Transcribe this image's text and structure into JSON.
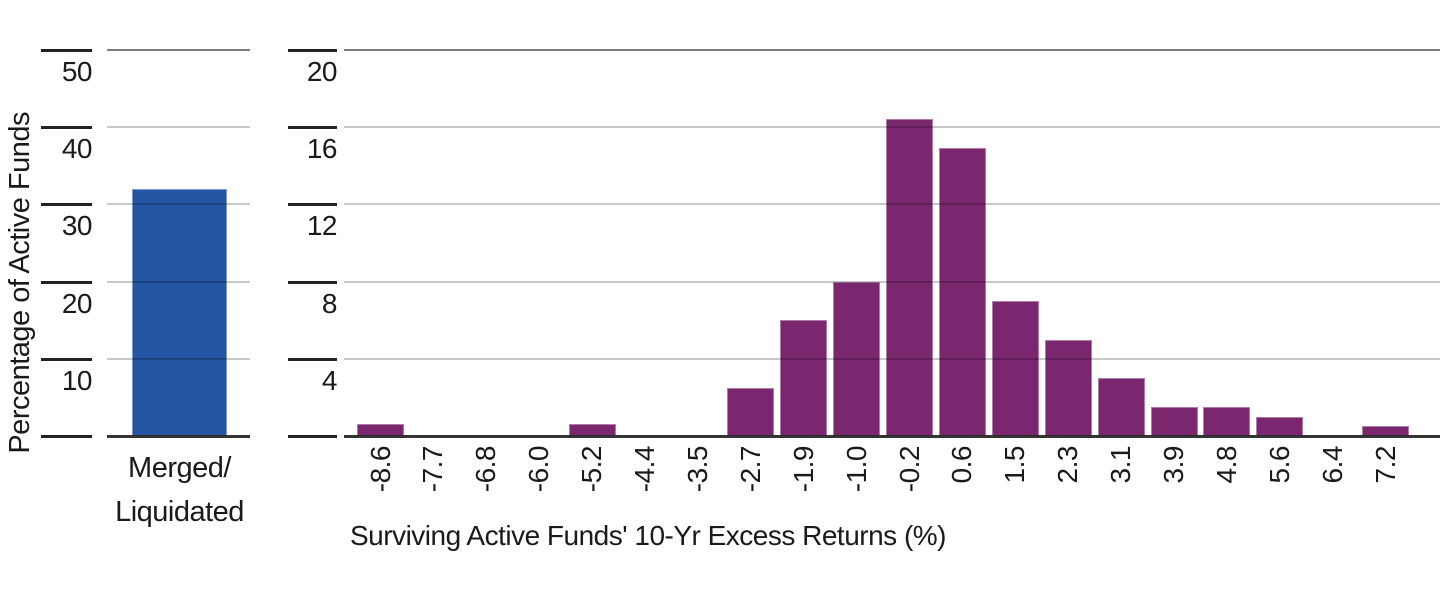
{
  "chart_title": "",
  "colors": {
    "merged_bar_blue": "#2556A4",
    "histogram_bar_purple": "#7B2770",
    "gridline_gray": "#C9C9C9",
    "axis_dark": "#3A3A3A",
    "text": "#1A1A1A"
  },
  "chart_data": [
    {
      "type": "bar",
      "panel": "left",
      "categories": [
        "Merged/\nLiquidated"
      ],
      "values": [
        32
      ],
      "ylabel": "Percentage of Active Funds",
      "xlabel": "",
      "yticks": [
        50,
        40,
        30,
        20,
        10
      ],
      "ylim": [
        0,
        50
      ],
      "grid": "horizontal, gridlines drawn over bars",
      "legend": "none",
      "bar_color": "#2556A4"
    },
    {
      "type": "bar",
      "panel": "right",
      "categories": [
        "-8.6",
        "-7.7",
        "-6.8",
        "-6.0",
        "-5.2",
        "-4.4",
        "-3.5",
        "-2.7",
        "-1.9",
        "-1.0",
        "-0.2",
        "0.6",
        "1.5",
        "2.3",
        "3.1",
        "3.9",
        "4.8",
        "5.6",
        "6.4",
        "7.2"
      ],
      "values": [
        0.6,
        0,
        0,
        0,
        0.6,
        0,
        0,
        2.5,
        6.0,
        8.0,
        16.4,
        14.9,
        7.0,
        5.0,
        3.0,
        1.5,
        1.5,
        1.0,
        0,
        0.5
      ],
      "ylabel": "",
      "xlabel": "Surviving Active Funds' 10-Yr Excess Returns (%)",
      "yticks": [
        20,
        16,
        12,
        8,
        4
      ],
      "ylim": [
        0,
        20
      ],
      "grid": "horizontal, gridlines drawn over bars",
      "legend": "none",
      "bar_color": "#7B2770"
    }
  ]
}
